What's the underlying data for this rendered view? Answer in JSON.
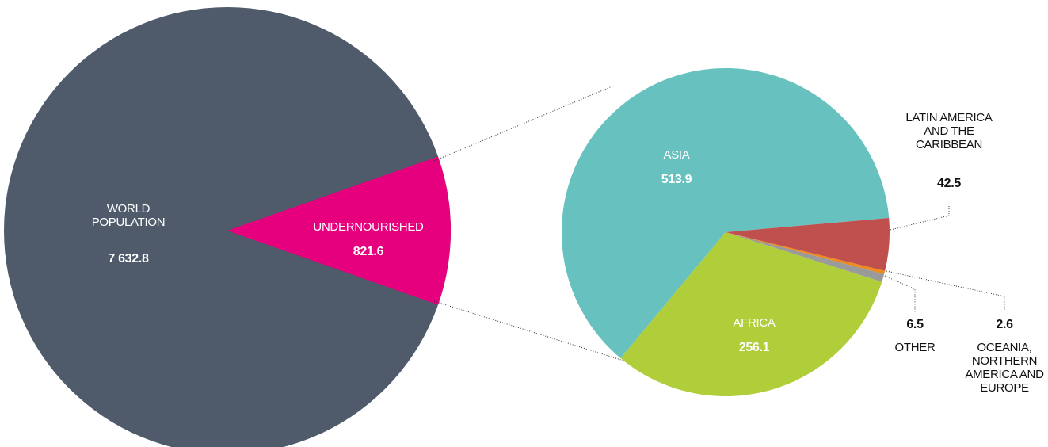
{
  "chart_data": [
    {
      "type": "pie",
      "categories": [
        "WORLD POPULATION",
        "UNDERNOURISHED"
      ],
      "values": [
        7632.8,
        821.6
      ],
      "value_labels": [
        "7 632.8",
        "821.6"
      ],
      "colors": [
        "#4f5b6b",
        "#e6007e"
      ]
    },
    {
      "type": "pie",
      "categories": [
        "LATIN AMERICA AND THE CARIBBEAN",
        "OCEANIA, NORTHERN AMERICA AND EUROPE",
        "OTHER",
        "AFRICA",
        "ASIA"
      ],
      "values": [
        42.5,
        2.6,
        6.5,
        256.1,
        513.9
      ],
      "colors": [
        "#c0504d",
        "#f08a1c",
        "#9a9a9a",
        "#b0cd3a",
        "#67c1bf"
      ]
    }
  ]
}
